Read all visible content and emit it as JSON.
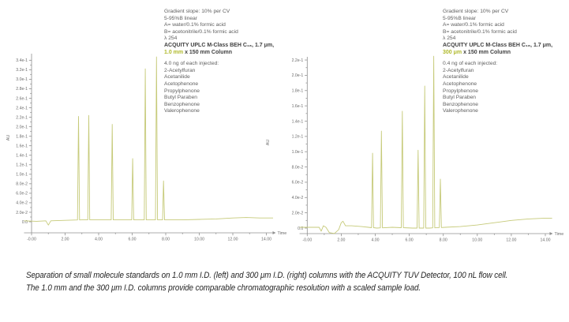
{
  "colors": {
    "trace": "#c6ca79",
    "accent_highlight": "#afb92a",
    "axis": "#909090",
    "tick_text": "#6b6b6b",
    "annotation_text": "#606060",
    "annotation_bold_text": "#404040",
    "caption_text": "#262626"
  },
  "caption": {
    "line1": "Separation of small molecule standards on 1.0 mm I.D. (left) and 300 μm I.D. (right) columns with the ACQUITY TUV Detector, 100 nL flow cell.",
    "line2": "The 1.0 mm and the 300 μm I.D. columns provide comparable chromatographic resolution with a scaled sample load."
  },
  "chart_data": [
    {
      "type": "line",
      "side": "left",
      "annotation": {
        "gradient_lines": [
          "Gradient slope: 10% per CV",
          "5-95%B linear",
          "A= water/0.1% formic acid",
          "B= acetonitrile/0.1% formic acid",
          "λ 254"
        ],
        "column_line_bold": "ACQUITY UPLC M-Class BEH C₁₈, 1.7 μm,",
        "column_highlight": "1.0 mm",
        "column_rest": " x 150 mm Column",
        "injected": "4.0 ng of each injected:",
        "analytes": [
          "2-Acetylfuran",
          "Acetanilide",
          "Acetophenone",
          "Propylphenone",
          "Butyl Paraben",
          "Benzophenone",
          "Valerophenone"
        ]
      },
      "xlabel": "Time",
      "ylabel": "AU",
      "xlim": [
        -0.45,
        14.4
      ],
      "ylim": [
        -0.024,
        0.352
      ],
      "x_ticks": [
        {
          "label": "-0.00",
          "t": 0
        },
        {
          "label": "2.00",
          "t": 2
        },
        {
          "label": "4.00",
          "t": 4
        },
        {
          "label": "6.00",
          "t": 6
        },
        {
          "label": "8.00",
          "t": 8
        },
        {
          "label": "10.00",
          "t": 10
        },
        {
          "label": "12.00",
          "t": 12
        },
        {
          "label": "14.00",
          "t": 14
        }
      ],
      "x_minor_ticks": [
        1,
        3,
        5,
        7,
        9,
        11,
        13
      ],
      "y_ticks": [
        {
          "label": "0.0",
          "v": 0.0
        },
        {
          "label": "2.0e-2",
          "v": 0.02
        },
        {
          "label": "4.0e-2",
          "v": 0.04
        },
        {
          "label": "6.0e-2",
          "v": 0.06
        },
        {
          "label": "8.0e-2",
          "v": 0.08
        },
        {
          "label": "1.0e-1",
          "v": 0.1
        },
        {
          "label": "1.2e-1",
          "v": 0.12
        },
        {
          "label": "1.4e-1",
          "v": 0.14
        },
        {
          "label": "1.6e-1",
          "v": 0.16
        },
        {
          "label": "1.8e-1",
          "v": 0.18
        },
        {
          "label": "2.0e-1",
          "v": 0.2
        },
        {
          "label": "2.2e-1",
          "v": 0.22
        },
        {
          "label": "2.4e-1",
          "v": 0.24
        },
        {
          "label": "2.6e-1",
          "v": 0.26
        },
        {
          "label": "2.8e-1",
          "v": 0.28
        },
        {
          "label": "3.0e-1",
          "v": 0.3
        },
        {
          "label": "3.2e-1",
          "v": 0.32
        },
        {
          "label": "3.4e-1",
          "v": 0.34
        }
      ],
      "peaks": [
        {
          "name": "2-Acetylfuran",
          "time": 2.8,
          "au": 0.222
        },
        {
          "name": "Acetanilide",
          "time": 3.41,
          "au": 0.224
        },
        {
          "name": "Acetophenone",
          "time": 4.81,
          "au": 0.205
        },
        {
          "name": "Propylphenone",
          "time": 6.03,
          "au": 0.133
        },
        {
          "name": "Butyl Paraben",
          "time": 6.78,
          "au": 0.322
        },
        {
          "name": "Benzophenone",
          "time": 7.45,
          "au": 0.347
        },
        {
          "name": "Valerophenone",
          "time": 7.87,
          "au": 0.086
        }
      ],
      "baseline": [
        [
          -0.45,
          0.002
        ],
        [
          0.3,
          0.001
        ],
        [
          0.85,
          0.002
        ],
        [
          1.0,
          -0.007
        ],
        [
          1.15,
          0.002
        ],
        [
          2.0,
          0.003
        ],
        [
          3.0,
          0.004
        ],
        [
          4.0,
          0.004
        ],
        [
          5.0,
          0.004
        ],
        [
          6.4,
          0.004
        ],
        [
          7.1,
          0.004
        ],
        [
          8.2,
          0.004
        ],
        [
          9.0,
          0.004
        ],
        [
          10.0,
          0.005
        ],
        [
          11.0,
          0.006
        ],
        [
          12.0,
          0.008
        ],
        [
          12.8,
          0.009
        ],
        [
          13.6,
          0.008
        ],
        [
          14.4,
          0.008
        ]
      ]
    },
    {
      "type": "line",
      "side": "right",
      "annotation": {
        "gradient_lines": [
          "Gradient slope: 10% per CV",
          "5-95%B linear",
          "A= water/0.1% formic acid",
          "B= acetonitrile/0.1% formic acid",
          "λ 254"
        ],
        "column_line_bold": "ACQUITY UPLC M-Class BEH C₁₈, 1.7 μm,",
        "column_highlight": "300 μm",
        "column_rest": " x 150 mm Column",
        "injected": "0.4 ng of each injected:",
        "analytes": [
          "2-Acetylfuran",
          "Acetanilide",
          "Acetophenone",
          "Propylphenone",
          "Butyl Paraben",
          "Benzophenone",
          "Valerophenone"
        ]
      },
      "xlabel": "Time",
      "ylabel": "AU",
      "xlim": [
        -0.45,
        14.4
      ],
      "ylim": [
        -0.007,
        0.228
      ],
      "x_ticks": [
        {
          "label": "-0.00",
          "t": 0
        },
        {
          "label": "2.00",
          "t": 2
        },
        {
          "label": "4.00",
          "t": 4
        },
        {
          "label": "6.00",
          "t": 6
        },
        {
          "label": "8.00",
          "t": 8
        },
        {
          "label": "10.00",
          "t": 10
        },
        {
          "label": "12.00",
          "t": 12
        },
        {
          "label": "14.00",
          "t": 14
        }
      ],
      "x_minor_ticks": [
        1,
        3,
        5,
        7,
        9,
        11,
        13
      ],
      "y_ticks": [
        {
          "label": "0.0",
          "v": 0.0
        },
        {
          "label": "2.0e-2",
          "v": 0.02
        },
        {
          "label": "4.0e-2",
          "v": 0.04
        },
        {
          "label": "6.0e-2",
          "v": 0.06
        },
        {
          "label": "8.0e-2",
          "v": 0.08
        },
        {
          "label": "1.0e-1",
          "v": 0.1
        },
        {
          "label": "1.2e-1",
          "v": 0.12
        },
        {
          "label": "1.4e-1",
          "v": 0.14
        },
        {
          "label": "1.6e-1",
          "v": 0.16
        },
        {
          "label": "1.8e-1",
          "v": 0.18
        },
        {
          "label": "2.0e-1",
          "v": 0.2
        },
        {
          "label": "2.2e-1",
          "v": 0.22
        }
      ],
      "peaks": [
        {
          "name": "2-Acetylfuran",
          "time": 3.84,
          "au": 0.098
        },
        {
          "name": "Acetanilide",
          "time": 4.36,
          "au": 0.127
        },
        {
          "name": "Acetophenone",
          "time": 5.59,
          "au": 0.153
        },
        {
          "name": "Propylphenone",
          "time": 6.52,
          "au": 0.102
        },
        {
          "name": "Butyl Paraben",
          "time": 6.91,
          "au": 0.186
        },
        {
          "name": "Benzophenone",
          "time": 7.44,
          "au": 0.225
        },
        {
          "name": "Valerophenone",
          "time": 7.83,
          "au": 0.064
        }
      ],
      "baseline": [
        [
          -0.45,
          0.001
        ],
        [
          0.7,
          0.001
        ],
        [
          0.82,
          -0.004
        ],
        [
          0.95,
          0.003
        ],
        [
          1.1,
          0.001
        ],
        [
          1.3,
          -0.006
        ],
        [
          1.6,
          -0.007
        ],
        [
          1.85,
          -0.002
        ],
        [
          2.0,
          0.007
        ],
        [
          2.1,
          0.009
        ],
        [
          2.25,
          0.003
        ],
        [
          2.6,
          0.003
        ],
        [
          3.2,
          0.002
        ],
        [
          3.6,
          0.001
        ],
        [
          4.1,
          0.0
        ],
        [
          5.0,
          0.001
        ],
        [
          6.2,
          0.0
        ],
        [
          7.2,
          0.0
        ],
        [
          8.1,
          0.001
        ],
        [
          9.0,
          0.002
        ],
        [
          10.0,
          0.004
        ],
        [
          11.0,
          0.007
        ],
        [
          12.0,
          0.01
        ],
        [
          13.0,
          0.012
        ],
        [
          14.0,
          0.013
        ],
        [
          14.4,
          0.013
        ]
      ]
    }
  ]
}
